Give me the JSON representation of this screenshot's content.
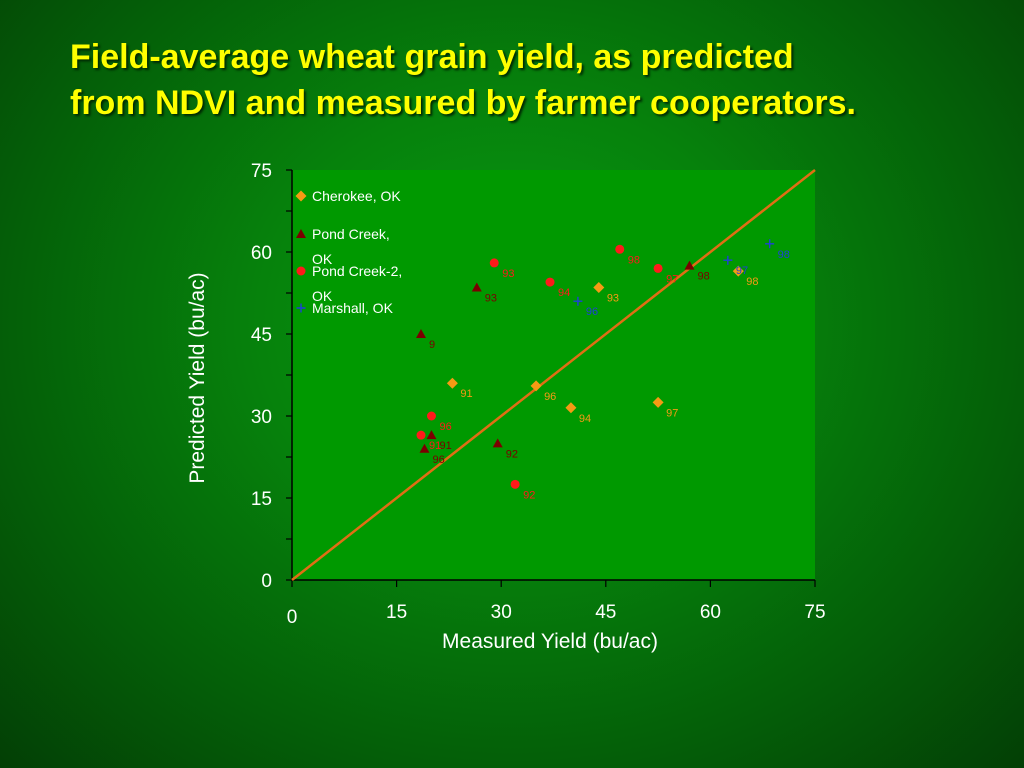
{
  "title": {
    "line1": "Field-average wheat grain yield, as predicted",
    "line2": "from NDVI and measured by farmer cooperators."
  },
  "colors": {
    "title": "#ffff00",
    "plot_bg": "#009900",
    "one_to_one_line": "#e06e14",
    "Cherokee, OK": "#f59a14",
    "Pond Creek, OK": "#7a0000",
    "Pond Creek-2, OK": "#ff1a1a",
    "Marshall, OK": "#1f3fd9"
  },
  "chart_data": {
    "type": "scatter",
    "xlabel": "Measured Yield (bu/ac)",
    "ylabel": "Predicted Yield (bu/ac)",
    "xlim": [
      0,
      75
    ],
    "ylim": [
      0,
      75
    ],
    "xticks": [
      "0",
      "15",
      "30",
      "45",
      "60",
      "75"
    ],
    "yticks": [
      "0",
      "15",
      "30",
      "45",
      "60",
      "75"
    ],
    "reference_line": {
      "x": [
        0,
        75
      ],
      "y": [
        0,
        75
      ]
    },
    "legend_position": "top-left",
    "series": [
      {
        "name": "Cherokee, OK",
        "marker": "diamond",
        "points": [
          {
            "x": 23,
            "y": 36,
            "label": "91"
          },
          {
            "x": 35,
            "y": 35.5,
            "label": "96"
          },
          {
            "x": 40,
            "y": 31.5,
            "label": "94"
          },
          {
            "x": 44,
            "y": 53.5,
            "label": "93"
          },
          {
            "x": 52.5,
            "y": 32.5,
            "label": "97"
          },
          {
            "x": 64,
            "y": 56.5,
            "label": "98"
          }
        ]
      },
      {
        "name": "Pond Creek, OK",
        "marker": "triangle",
        "points": [
          {
            "x": 18.5,
            "y": 45,
            "label": "9"
          },
          {
            "x": 19,
            "y": 24,
            "label": "96"
          },
          {
            "x": 20,
            "y": 26.5,
            "label": "91"
          },
          {
            "x": 26.5,
            "y": 53.5,
            "label": "93"
          },
          {
            "x": 29.5,
            "y": 25,
            "label": "92"
          },
          {
            "x": 57,
            "y": 57.5,
            "label": "98"
          }
        ]
      },
      {
        "name": "Pond Creek-2, OK",
        "marker": "circle",
        "points": [
          {
            "x": 18.5,
            "y": 26.5,
            "label": "91"
          },
          {
            "x": 20,
            "y": 30,
            "label": "96"
          },
          {
            "x": 29,
            "y": 58,
            "label": "93"
          },
          {
            "x": 32,
            "y": 17.5,
            "label": "92"
          },
          {
            "x": 37,
            "y": 54.5,
            "label": "94"
          },
          {
            "x": 47,
            "y": 60.5,
            "label": "98"
          },
          {
            "x": 52.5,
            "y": 57,
            "label": "97"
          }
        ]
      },
      {
        "name": "Marshall, OK",
        "marker": "plus",
        "points": [
          {
            "x": 41,
            "y": 51,
            "label": "96"
          },
          {
            "x": 62.5,
            "y": 58.5,
            "label": "97"
          },
          {
            "x": 68.5,
            "y": 61.5,
            "label": "98"
          }
        ]
      }
    ]
  },
  "legend": {
    "items": [
      {
        "line1": "Cherokee, OK",
        "line2": ""
      },
      {
        "line1": "Pond Creek,",
        "line2": "OK"
      },
      {
        "line1": "Pond Creek-2,",
        "line2": "OK"
      },
      {
        "line1": "Marshall, OK",
        "line2": ""
      }
    ]
  }
}
